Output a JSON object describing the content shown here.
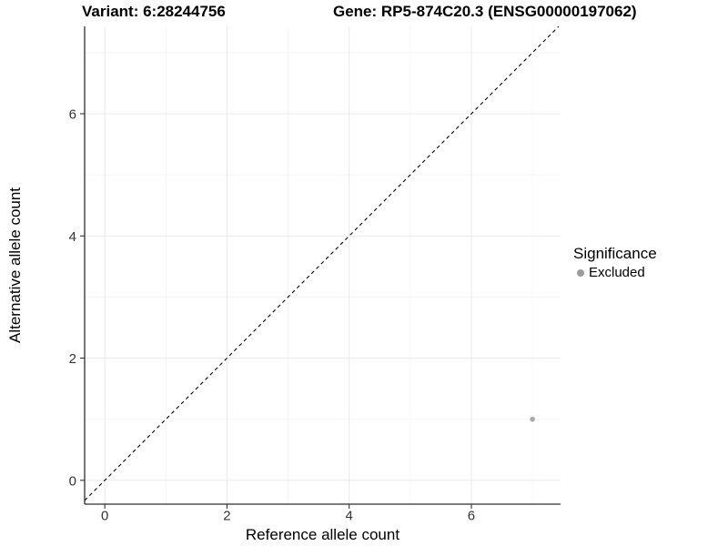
{
  "header": {
    "variant_title": "Variant: 6:28244756",
    "gene_title": "Gene: RP5-874C20.3 (ENSG00000197062)"
  },
  "chart_data": {
    "type": "scatter",
    "title_left": "Variant: 6:28244756",
    "title_right": "Gene: RP5-874C20.3 (ENSG00000197062)",
    "xlabel": "Reference allele count",
    "ylabel": "Alternative allele count",
    "xlim": [
      -0.33,
      7.46
    ],
    "ylim": [
      -0.39,
      7.43
    ],
    "xticks": [
      0,
      2,
      4,
      6
    ],
    "yticks": [
      0,
      2,
      4,
      6
    ],
    "xminor": [
      1,
      3,
      5,
      7
    ],
    "yminor": [
      1,
      3,
      5,
      7
    ],
    "grid": "on",
    "identity_line": {
      "slope": 1,
      "intercept": 0,
      "style": "dashed",
      "color": "#000000"
    },
    "series": [
      {
        "name": "Excluded",
        "color": "#a8a8a8",
        "points": [
          {
            "x": 7,
            "y": 1
          }
        ]
      }
    ],
    "legend": {
      "title": "Significance",
      "position": "right",
      "entries": [
        {
          "label": "Excluded",
          "color": "#9b9b9b"
        }
      ]
    },
    "style": {
      "background": "#ffffff",
      "axis_line": "#2e2e2e",
      "tick_mark": "#333333",
      "tick_label": "#333333",
      "grid_major": "#ebebeb",
      "grid_minor": "#f5f5f5",
      "text": "#000000",
      "point_radius": 2.8
    }
  }
}
